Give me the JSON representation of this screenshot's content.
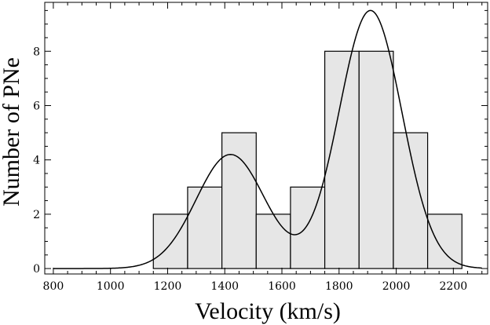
{
  "chart_data": {
    "type": "bar",
    "xlabel": "Velocity (km/s)",
    "ylabel": "Number of PNe",
    "xlim": [
      770,
      2320
    ],
    "ylim": [
      -0.2,
      9.8
    ],
    "xticks": [
      800,
      1000,
      1200,
      1400,
      1600,
      1800,
      2000,
      2200
    ],
    "yticks": [
      0,
      2,
      4,
      6,
      8
    ],
    "bins": [
      {
        "x0": 1150,
        "x1": 1270,
        "value": 2
      },
      {
        "x0": 1270,
        "x1": 1390,
        "value": 3
      },
      {
        "x0": 1390,
        "x1": 1510,
        "value": 5
      },
      {
        "x0": 1510,
        "x1": 1630,
        "value": 2
      },
      {
        "x0": 1630,
        "x1": 1750,
        "value": 3
      },
      {
        "x0": 1750,
        "x1": 1870,
        "value": 8
      },
      {
        "x0": 1870,
        "x1": 1990,
        "value": 8
      },
      {
        "x0": 1990,
        "x1": 2110,
        "value": 5
      },
      {
        "x0": 2110,
        "x1": 2230,
        "value": 2
      }
    ],
    "fit_curve": {
      "type": "double-gaussian",
      "x_range": [
        800,
        2300
      ],
      "components": [
        {
          "amplitude": 4.2,
          "mean": 1420,
          "sigma": 120
        },
        {
          "amplitude": 9.5,
          "mean": 1910,
          "sigma": 110
        }
      ]
    },
    "colors": {
      "bar_fill": "#e6e6e6",
      "bar_stroke": "#000000",
      "curve": "#000000"
    },
    "grid": false
  }
}
